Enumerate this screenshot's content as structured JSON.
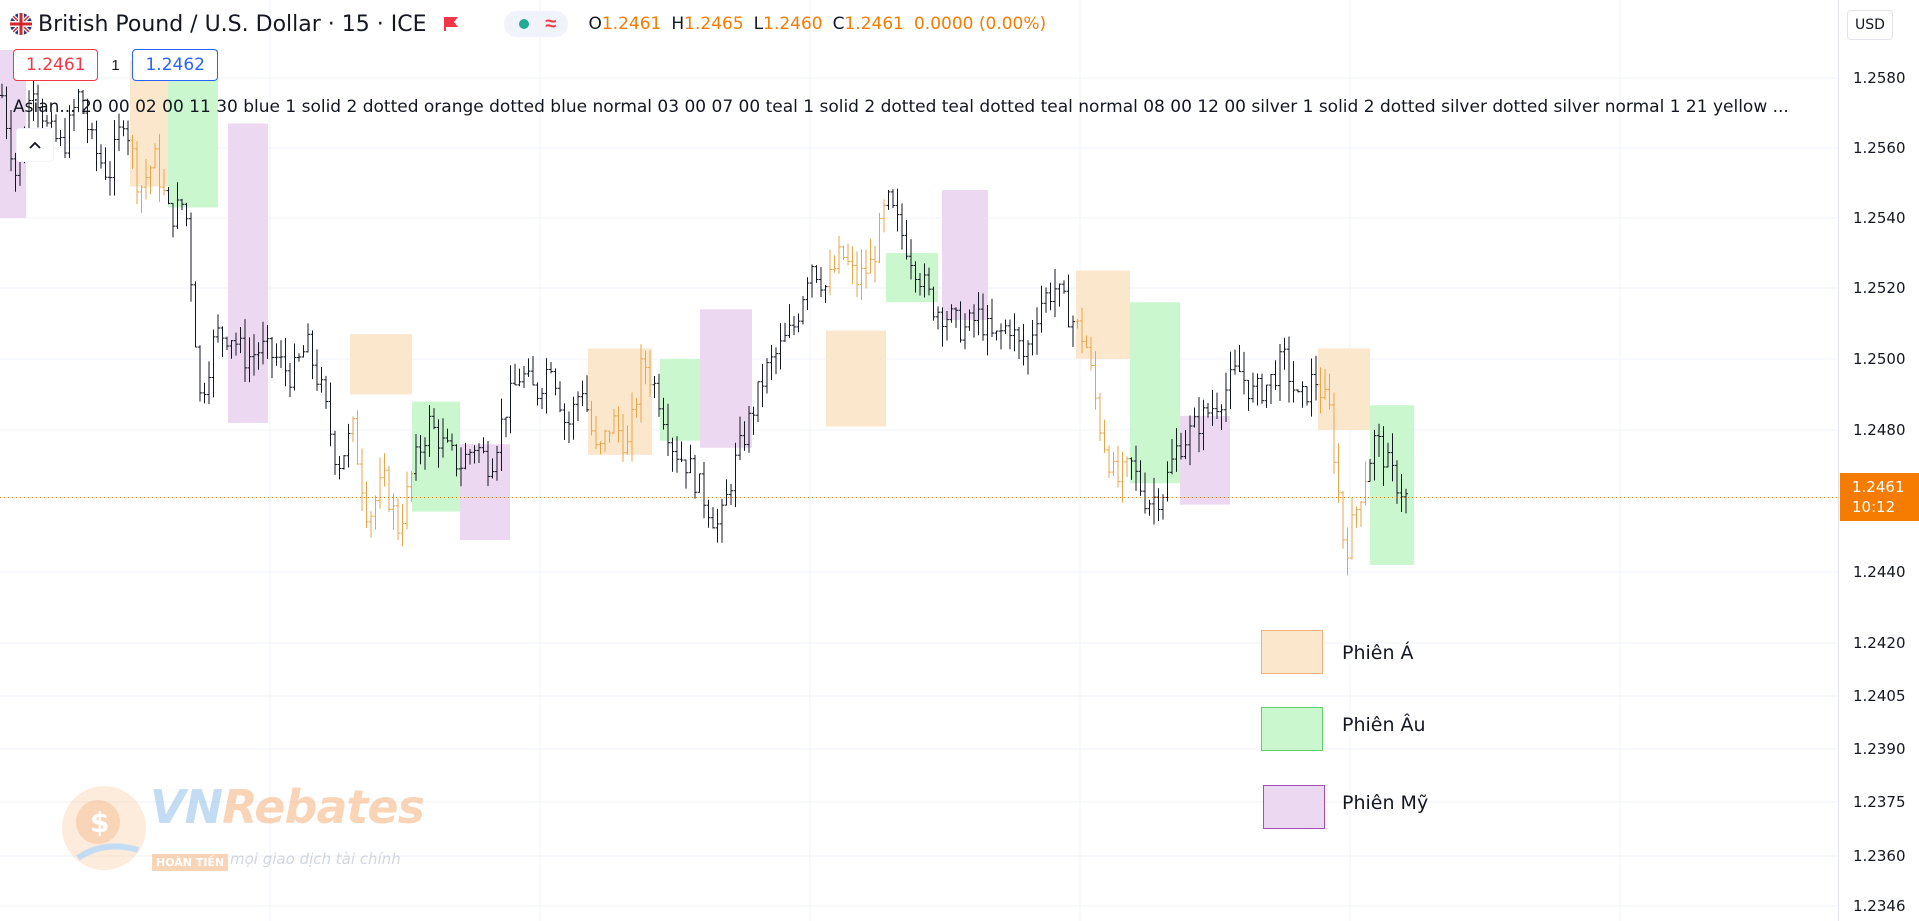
{
  "header": {
    "symbol_title": "British Pound / U.S. Dollar · 15 · ICE",
    "ohlc": {
      "o_key": "O",
      "o_val": "1.2461",
      "h_key": "H",
      "h_val": "1.2465",
      "l_key": "L",
      "l_val": "1.2460",
      "c_key": "C",
      "c_val": "1.2461",
      "change": "0.0000 (0.00%)"
    },
    "status_icon": "≈"
  },
  "trade": {
    "sell_price": "1.2461",
    "lot_size": "1",
    "buy_price": "1.2462"
  },
  "indicator_line": "Asian... 20 00 02 00 11 30 blue 1 solid 2 dotted orange dotted blue normal 03 00 07 00 teal 1 solid 2 dotted teal dotted teal normal 08 00 12 00 silver 1 solid 2 dotted silver dotted silver normal 1 21 yellow ...",
  "price_axis": {
    "currency": "USD",
    "ticks": [
      "1.2580",
      "1.2560",
      "1.2540",
      "1.2520",
      "1.2500",
      "1.2480",
      "1.2440",
      "1.2420",
      "1.2405",
      "1.2390",
      "1.2375",
      "1.2360",
      "1.2346"
    ],
    "last_price": "1.2461",
    "countdown": "10:12"
  },
  "legend": [
    {
      "label": "Phiên Á",
      "color": "#fbe7cc",
      "border": "#f4b27a"
    },
    {
      "label": "Phiên Âu",
      "color": "#cbf7cf",
      "border": "#5fcf72"
    },
    {
      "label": "Phiên Mỹ",
      "color": "#ecd8f0",
      "border": "#a34fb5"
    }
  ],
  "watermark": {
    "brand_vn": "VN",
    "brand_rest": "Rebates",
    "badge": "HOÀN TIỀN",
    "tagline": "mọi giao dịch tài chính"
  },
  "colors": {
    "asian_session": "#fbe7cc",
    "european_session": "#cbf7cf",
    "american_session": "#ecd8f0",
    "bar_asian": "#e8a54b",
    "bar_default": "#131722",
    "last_price": "#f57c00",
    "sell": "#f23645",
    "buy": "#2962ff"
  },
  "chart_data": {
    "type": "ohlc-bars",
    "symbol": "GBPUSD",
    "timeframe": "15",
    "price_axis_ticks": [
      1.258,
      1.256,
      1.254,
      1.252,
      1.25,
      1.248,
      1.244,
      1.242,
      1.2405,
      1.239,
      1.2375,
      1.236,
      1.2346
    ],
    "last_price": 1.2461,
    "sessions": [
      {
        "type": "american",
        "high": 1.2588,
        "low": 1.254
      },
      {
        "type": "asian",
        "high": 1.2585,
        "low": 1.2549
      },
      {
        "type": "european",
        "high": 1.2588,
        "low": 1.2543
      },
      {
        "type": "american",
        "high": 1.2567,
        "low": 1.2482
      },
      {
        "type": "asian",
        "high": 1.2507,
        "low": 1.249
      },
      {
        "type": "european",
        "high": 1.2488,
        "low": 1.2457
      },
      {
        "type": "american",
        "high": 1.2476,
        "low": 1.2449
      },
      {
        "type": "asian",
        "high": 1.2503,
        "low": 1.2473
      },
      {
        "type": "european",
        "high": 1.25,
        "low": 1.2477
      },
      {
        "type": "american",
        "high": 1.2514,
        "low": 1.2475
      },
      {
        "type": "asian",
        "high": 1.2508,
        "low": 1.2481
      },
      {
        "type": "european",
        "high": 1.253,
        "low": 1.2516
      },
      {
        "type": "american",
        "high": 1.2548,
        "low": 1.2511
      },
      {
        "type": "asian",
        "high": 1.2525,
        "low": 1.25
      },
      {
        "type": "european",
        "high": 1.2516,
        "low": 1.2465
      },
      {
        "type": "american",
        "high": 1.2484,
        "low": 1.2459
      },
      {
        "type": "asian",
        "high": 1.2503,
        "low": 1.248
      },
      {
        "type": "european",
        "high": 1.2487,
        "low": 1.2442
      }
    ],
    "price_path": [
      1.2575,
      1.255,
      1.258,
      1.2565,
      1.256,
      1.2575,
      1.256,
      1.2552,
      1.257,
      1.2548,
      1.2557,
      1.254,
      1.2545,
      1.2488,
      1.2507,
      1.2507,
      1.25,
      1.2503,
      1.25,
      1.2495,
      1.2504,
      1.249,
      1.247,
      1.248,
      1.2455,
      1.2466,
      1.2452,
      1.247,
      1.2482,
      1.2475,
      1.247,
      1.2476,
      1.247,
      1.2486,
      1.2496,
      1.249,
      1.25,
      1.248,
      1.2493,
      1.2472,
      1.2483,
      1.2475,
      1.25,
      1.249,
      1.2475,
      1.247,
      1.2461,
      1.2452,
      1.247,
      1.2483,
      1.2496,
      1.2503,
      1.251,
      1.2528,
      1.252,
      1.253,
      1.2522,
      1.2527,
      1.2545,
      1.2535,
      1.2525,
      1.2515,
      1.2512,
      1.2508,
      1.2512,
      1.2505,
      1.251,
      1.25,
      1.2516,
      1.252,
      1.2512,
      1.2505,
      1.248,
      1.2465,
      1.247,
      1.246,
      1.2462,
      1.2475,
      1.248,
      1.2485,
      1.249,
      1.2497,
      1.249,
      1.2493,
      1.25,
      1.2487,
      1.2495,
      1.2485,
      1.2445,
      1.2462,
      1.2478,
      1.2468,
      1.2461
    ]
  }
}
